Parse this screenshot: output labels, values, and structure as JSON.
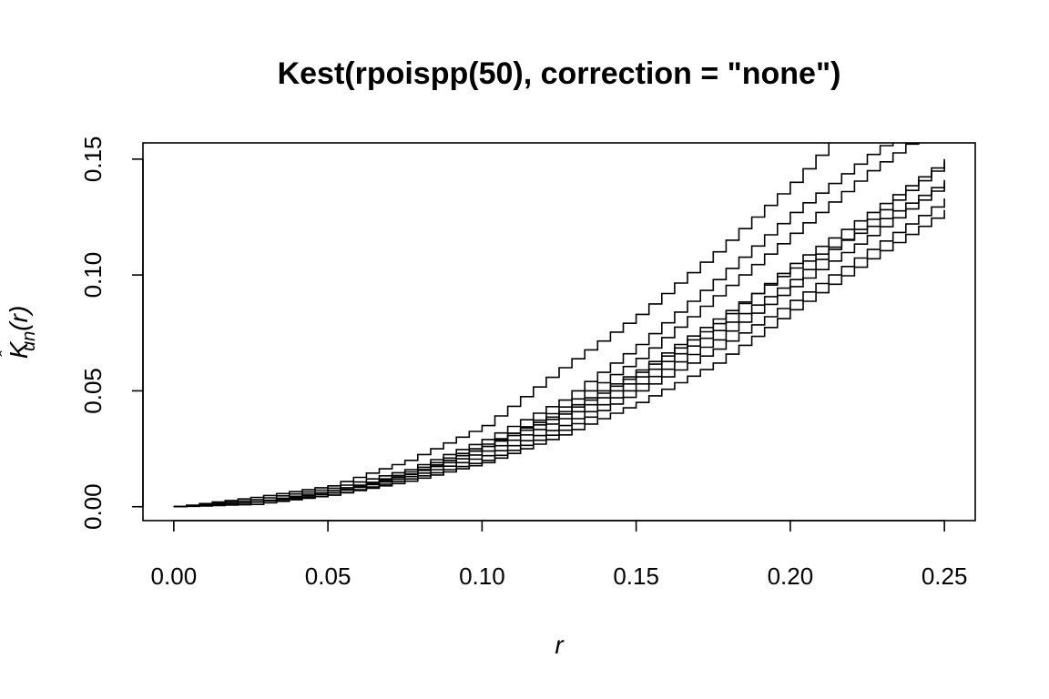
{
  "chart_data": {
    "type": "line",
    "title": "Kest(rpoispp(50), correction = \"none\")",
    "xlabel": "r",
    "ylabel": "K̂un(r)",
    "ylabel_parts": {
      "main": "K",
      "hat": "ˆ",
      "sub": "un",
      "arg": "(r)"
    },
    "xlim": [
      -0.01,
      0.26
    ],
    "ylim": [
      -0.006,
      0.157
    ],
    "x_ticks": [
      0.0,
      0.05,
      0.1,
      0.15,
      0.2,
      0.25
    ],
    "x_tick_labels": [
      "0.00",
      "0.05",
      "0.10",
      "0.15",
      "0.20",
      "0.25"
    ],
    "y_ticks": [
      0.0,
      0.05,
      0.1,
      0.15
    ],
    "y_tick_labels": [
      "0.00",
      "0.05",
      "0.10",
      "0.15"
    ],
    "grid": false,
    "legend": "none",
    "line_color": "#000000",
    "x": [
      0.0,
      0.025,
      0.05,
      0.075,
      0.1,
      0.125,
      0.15,
      0.175,
      0.2,
      0.225,
      0.25
    ],
    "series": [
      {
        "values": [
          0.0,
          0.004,
          0.009,
          0.02,
          0.035,
          0.06,
          0.083,
          0.11,
          0.14,
          0.175,
          0.2
        ]
      },
      {
        "values": [
          0.0,
          0.003,
          0.008,
          0.016,
          0.029,
          0.046,
          0.07,
          0.098,
          0.127,
          0.152,
          0.175
        ]
      },
      {
        "values": [
          0.0,
          0.002,
          0.007,
          0.014,
          0.026,
          0.043,
          0.064,
          0.091,
          0.118,
          0.145,
          0.168
        ]
      },
      {
        "values": [
          0.0,
          0.002,
          0.006,
          0.014,
          0.026,
          0.04,
          0.058,
          0.079,
          0.105,
          0.127,
          0.15
        ]
      },
      {
        "values": [
          0.0,
          0.002,
          0.006,
          0.014,
          0.024,
          0.038,
          0.056,
          0.076,
          0.098,
          0.124,
          0.149
        ]
      },
      {
        "values": [
          0.0,
          0.002,
          0.006,
          0.015,
          0.027,
          0.041,
          0.059,
          0.081,
          0.103,
          0.121,
          0.141
        ]
      },
      {
        "values": [
          0.0,
          0.002,
          0.006,
          0.013,
          0.022,
          0.035,
          0.053,
          0.072,
          0.095,
          0.117,
          0.14
        ]
      },
      {
        "values": [
          0.0,
          0.002,
          0.005,
          0.012,
          0.02,
          0.033,
          0.05,
          0.068,
          0.089,
          0.111,
          0.133
        ]
      },
      {
        "values": [
          0.0,
          0.001,
          0.005,
          0.011,
          0.019,
          0.031,
          0.045,
          0.062,
          0.085,
          0.107,
          0.128
        ]
      }
    ]
  }
}
